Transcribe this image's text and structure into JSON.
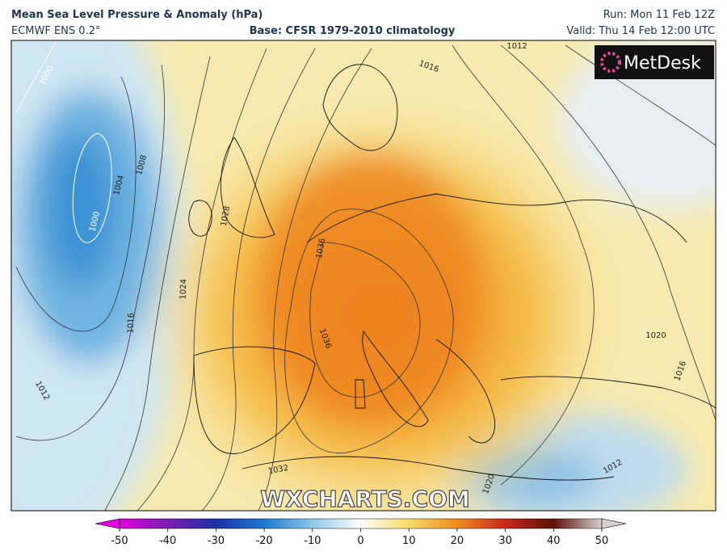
{
  "header": {
    "title": "Mean Sea Level Pressure & Anomaly (hPa)",
    "model": "ECMWF ENS 0.2°",
    "base": "Base: CFSR 1979-2010 climatology",
    "run": "Run: Mon 11 Feb 12Z",
    "valid": "Valid: Thu 14 Feb 12:00 UTC"
  },
  "logo": "MetDesk",
  "watermark": "WXCHARTS.COM",
  "isobar_labels": [
    "1000",
    "1000",
    "1004",
    "1008",
    "1012",
    "1012",
    "1016",
    "1016",
    "1016",
    "1020",
    "1020",
    "1024",
    "1028",
    "1032",
    "1036",
    "1036",
    "1012"
  ],
  "colorbar": {
    "ticks": [
      -50,
      -40,
      -30,
      -20,
      -10,
      0,
      10,
      20,
      30,
      40,
      50
    ]
  }
}
